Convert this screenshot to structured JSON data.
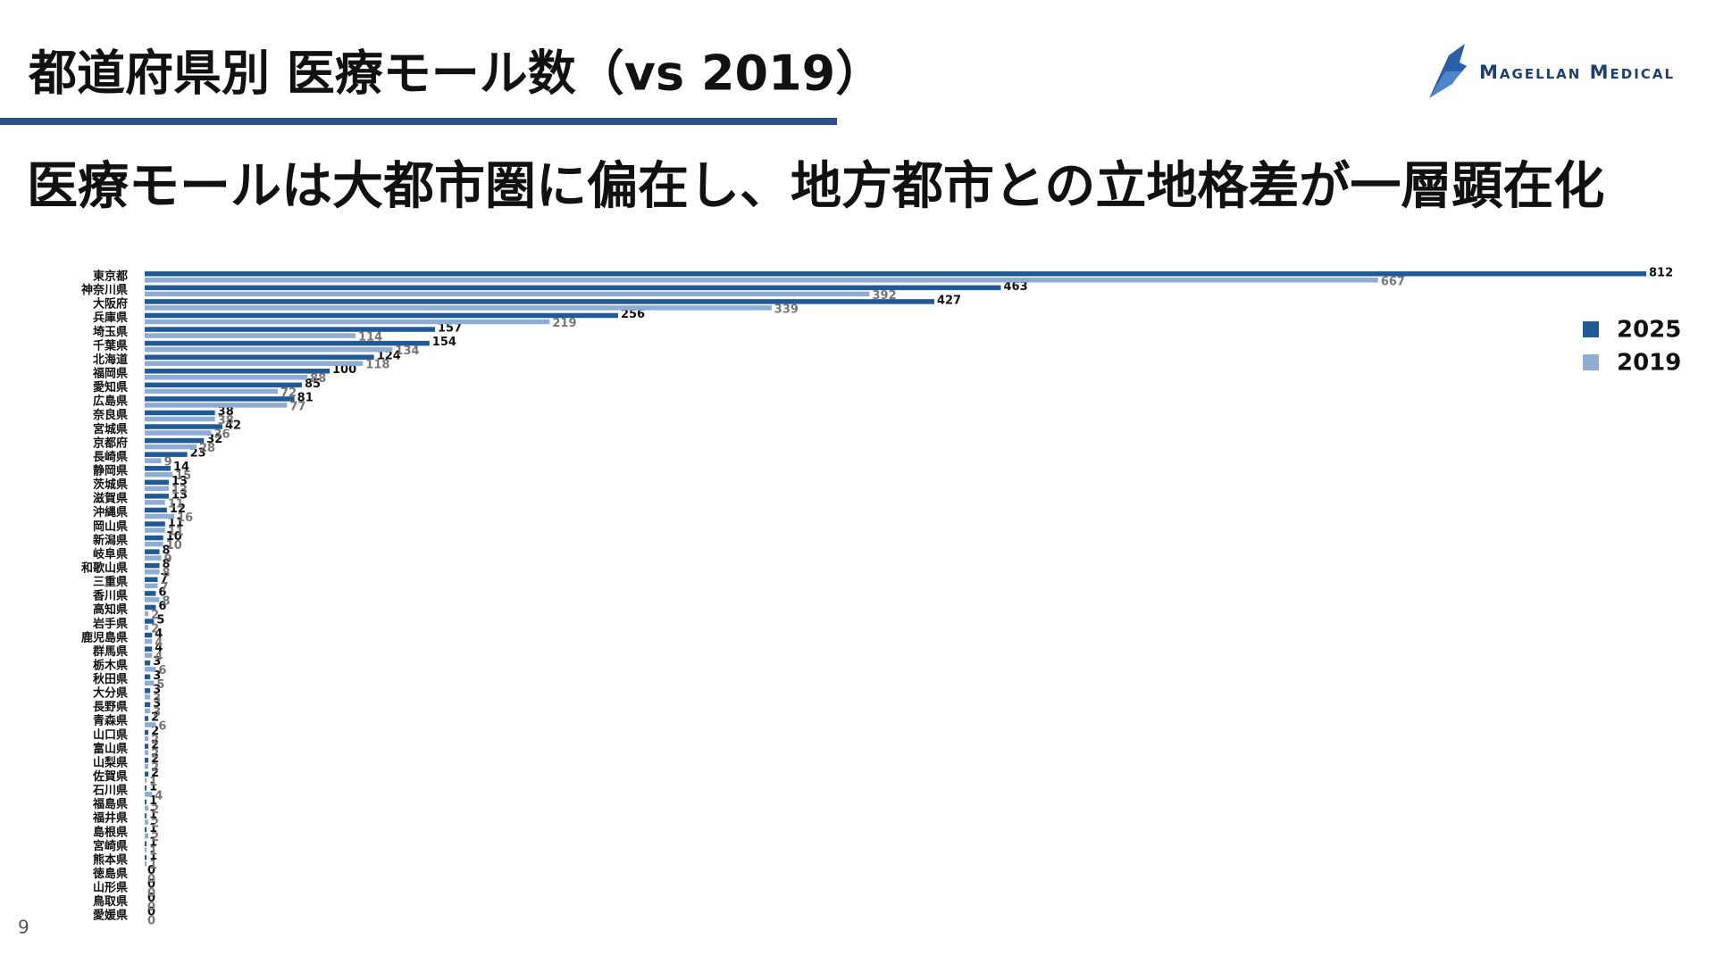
{
  "title": "都道府県別 医療モール数（vs 2019）",
  "subtitle": "医療モールは大都市圏に偏在し、地方都市との立地格差が一層顕在化",
  "logo": "Magellan Medical",
  "page_number": 9,
  "chart_data": {
    "type": "bar",
    "orientation": "horizontal",
    "categories": [
      "東京都",
      "神奈川県",
      "大阪府",
      "兵庫県",
      "埼玉県",
      "千葉県",
      "北海道",
      "福岡県",
      "愛知県",
      "広島県",
      "奈良県",
      "宮城県",
      "京都府",
      "長崎県",
      "静岡県",
      "茨城県",
      "滋賀県",
      "沖縄県",
      "岡山県",
      "新潟県",
      "岐阜県",
      "和歌山県",
      "三重県",
      "香川県",
      "高知県",
      "岩手県",
      "鹿児島県",
      "群馬県",
      "栃木県",
      "秋田県",
      "大分県",
      "長野県",
      "青森県",
      "山口県",
      "富山県",
      "山梨県",
      "佐賀県",
      "石川県",
      "福島県",
      "福井県",
      "島根県",
      "宮崎県",
      "熊本県",
      "徳島県",
      "山形県",
      "鳥取県",
      "愛媛県"
    ],
    "series": [
      {
        "name": "2025",
        "color": "#1f5a96",
        "label_color": "#111111",
        "values": [
          812,
          463,
          427,
          256,
          157,
          154,
          124,
          100,
          85,
          81,
          38,
          42,
          32,
          23,
          14,
          13,
          13,
          12,
          11,
          10,
          8,
          8,
          7,
          6,
          6,
          5,
          4,
          4,
          3,
          3,
          3,
          3,
          2,
          2,
          2,
          2,
          2,
          1,
          1,
          1,
          1,
          1,
          1,
          0,
          0,
          0,
          0
        ]
      },
      {
        "name": "2019",
        "color": "#8fadd3",
        "label_color": "#777777",
        "values": [
          667,
          392,
          339,
          219,
          114,
          134,
          118,
          88,
          72,
          77,
          38,
          36,
          28,
          9,
          15,
          13,
          11,
          16,
          11,
          10,
          9,
          8,
          7,
          8,
          2,
          2,
          4,
          4,
          6,
          5,
          3,
          3,
          6,
          2,
          2,
          2,
          1,
          4,
          2,
          2,
          2,
          1,
          1,
          0,
          0,
          0,
          0
        ]
      }
    ],
    "xlim": [
      0,
      812
    ],
    "legend": "right"
  }
}
